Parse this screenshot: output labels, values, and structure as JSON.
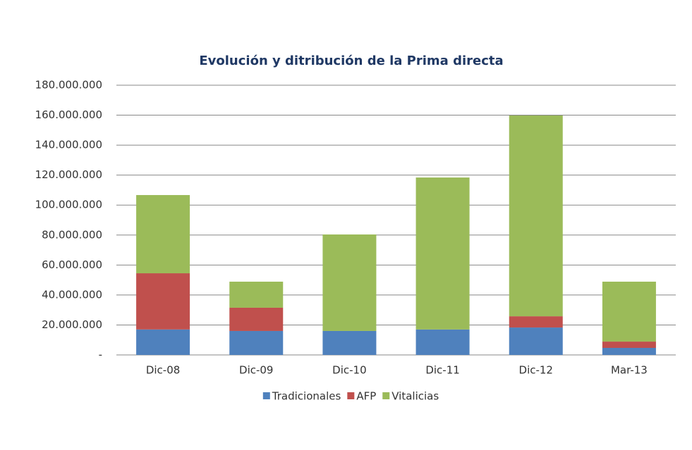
{
  "chart_data": {
    "type": "stacked_bar",
    "title": "Evolución y ditribución de la Prima directa",
    "categories": [
      "Dic-08",
      "Dic-09",
      "Dic-10",
      "Dic-11",
      "Dic-12",
      "Mar-13"
    ],
    "series": [
      {
        "name": "Tradicionales",
        "color": "#4f81bd",
        "values": [
          17000000,
          16000000,
          16000000,
          17000000,
          18300000,
          4700000
        ]
      },
      {
        "name": "AFP",
        "color": "#c0504d",
        "values": [
          37500000,
          15500000,
          0,
          0,
          7500000,
          4200000
        ]
      },
      {
        "name": "Vitalicias",
        "color": "#9bbb59",
        "values": [
          52200000,
          17400000,
          64400000,
          101400000,
          134000000,
          40000000
        ]
      }
    ],
    "ylim": [
      0,
      180000000
    ],
    "yticks": [
      {
        "value": 0,
        "label": "-"
      },
      {
        "value": 20000000,
        "label": "20.000.000"
      },
      {
        "value": 40000000,
        "label": "40.000.000"
      },
      {
        "value": 60000000,
        "label": "60.000.000"
      },
      {
        "value": 80000000,
        "label": "80.000.000"
      },
      {
        "value": 100000000,
        "label": "100.000.000"
      },
      {
        "value": 120000000,
        "label": "120.000.000"
      },
      {
        "value": 140000000,
        "label": "140.000.000"
      },
      {
        "value": 160000000,
        "label": "160.000.000"
      },
      {
        "value": 180000000,
        "label": "180.000.000"
      }
    ],
    "grid": true,
    "legend": "bottom"
  }
}
